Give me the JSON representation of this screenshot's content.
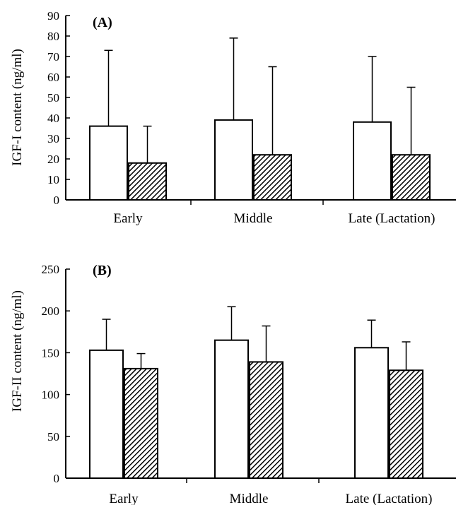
{
  "chart_data": [
    {
      "type": "bar",
      "panel_label": "(A)",
      "ylabel": "IGF-I content (ng/ml)",
      "categories": [
        "Early",
        "Middle",
        "Late (Lactation)"
      ],
      "ylim": [
        0,
        90
      ],
      "yticks": [
        0,
        10,
        20,
        30,
        40,
        50,
        60,
        70,
        80,
        90
      ],
      "error_bars": "upper",
      "series": [
        {
          "style": "open",
          "values": [
            36,
            39,
            38
          ],
          "errors": [
            37,
            40,
            32
          ]
        },
        {
          "style": "hatched",
          "values": [
            18,
            22,
            22
          ],
          "errors": [
            18,
            43,
            33
          ]
        }
      ]
    },
    {
      "type": "bar",
      "panel_label": "(B)",
      "ylabel": "IGF-II content (ng/ml)",
      "categories": [
        "Early",
        "Middle",
        "Late (Lactation)"
      ],
      "ylim": [
        0,
        250
      ],
      "yticks": [
        0,
        50,
        100,
        150,
        200,
        250
      ],
      "error_bars": "upper",
      "series": [
        {
          "style": "open",
          "values": [
            153,
            165,
            156
          ],
          "errors": [
            37,
            40,
            33
          ]
        },
        {
          "style": "hatched",
          "values": [
            131,
            139,
            129
          ],
          "errors": [
            18,
            43,
            34
          ]
        }
      ]
    }
  ],
  "colors": {
    "open_fill": "#ffffff",
    "hatch": "#000000",
    "axis": "#000000"
  }
}
